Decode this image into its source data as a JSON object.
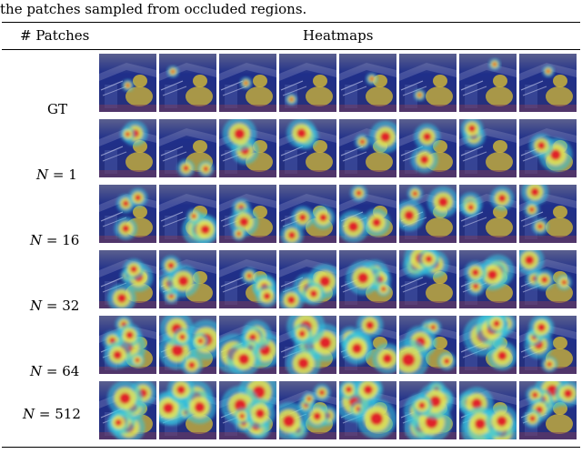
{
  "caption": "the patches sampled from occluded regions.",
  "table": {
    "header_patches": "# Patches",
    "header_heatmaps": "Heatmaps",
    "rows": [
      {
        "label": "GT",
        "variable": "",
        "value": ""
      },
      {
        "label": "",
        "variable": "N",
        "value": "= 1"
      },
      {
        "label": "",
        "variable": "N",
        "value": "= 16"
      },
      {
        "label": "",
        "variable": "N",
        "value": "= 32"
      },
      {
        "label": "",
        "variable": "N",
        "value": "= 64"
      },
      {
        "label": "",
        "variable": "N",
        "value": "= 512"
      }
    ],
    "columns_per_row": 8
  },
  "colors": {
    "background_blue": "#1f2f8a",
    "duck_yellow": "#c9b23a",
    "heat_red": "#e0242a",
    "heat_yellow": "#f2e64a",
    "heat_cyan": "#35c6e0"
  }
}
